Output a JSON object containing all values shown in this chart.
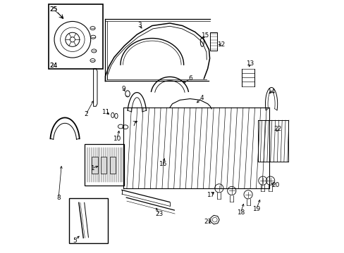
{
  "background_color": "#ffffff",
  "line_color": "#000000",
  "fig_width": 4.89,
  "fig_height": 3.6,
  "dpi": 100
}
